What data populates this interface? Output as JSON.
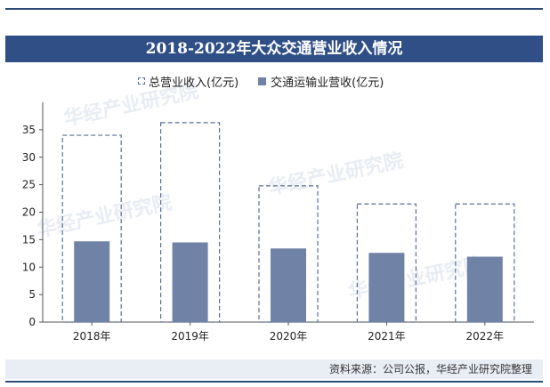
{
  "chart_data": {
    "type": "bar",
    "title": "2018-2022年大众交通营业收入情况",
    "categories": [
      "2018年",
      "2019年",
      "2020年",
      "2021年",
      "2022年"
    ],
    "series": [
      {
        "name": "总营业收入(亿元)",
        "values": [
          34.0,
          36.3,
          24.8,
          21.5,
          21.5
        ],
        "style": "dashed-outline"
      },
      {
        "name": "交通运输业营收(亿元)",
        "values": [
          14.7,
          14.5,
          13.4,
          12.6,
          11.9
        ],
        "style": "filled"
      }
    ],
    "yticks": [
      0,
      5,
      10,
      15,
      20,
      25,
      30,
      35
    ],
    "ylim": [
      0,
      40
    ],
    "grid": false,
    "legend_position": "top"
  },
  "watermark_text": "华经产业研究院",
  "source": "资料来源：公司公报，华经产业研究院整理",
  "colors": {
    "title_bg": "#2f4f86",
    "bar_fill": "#7083a6",
    "outline": "#5a6f95",
    "source_bg": "#e9edf4"
  }
}
